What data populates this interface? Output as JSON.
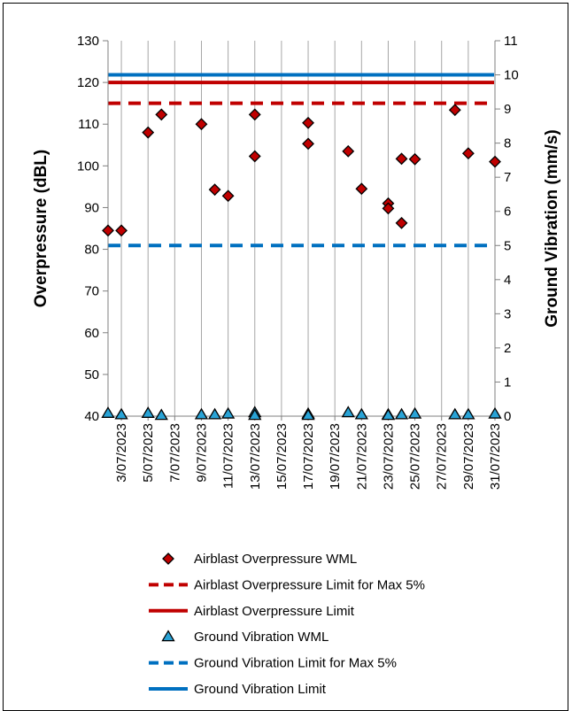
{
  "chart_data": {
    "type": "scatter",
    "y_left_label": "Overpressure (dBL)",
    "y_right_label": "Ground Vibration (mm/s)",
    "y_left_range": [
      40,
      130
    ],
    "y_right_range": [
      0,
      11
    ],
    "y_left_ticks": [
      "40",
      "50",
      "60",
      "70",
      "80",
      "90",
      "100",
      "110",
      "120",
      "130"
    ],
    "y_right_ticks": [
      "0",
      "1",
      "2",
      "3",
      "4",
      "5",
      "6",
      "7",
      "8",
      "9",
      "10",
      "11"
    ],
    "x_range": [
      "2023-07-02",
      "2023-07-31"
    ],
    "x_tick_labels": [
      "3/07/2023",
      "5/07/2023",
      "7/07/2023",
      "9/07/2023",
      "11/07/2023",
      "13/07/2023",
      "15/07/2023",
      "17/07/2023",
      "19/07/2023",
      "21/07/2023",
      "23/07/2023",
      "25/07/2023",
      "27/07/2023",
      "29/07/2023",
      "31/07/2023"
    ],
    "x_tick_dates": [
      "2023-07-03",
      "2023-07-05",
      "2023-07-07",
      "2023-07-09",
      "2023-07-11",
      "2023-07-13",
      "2023-07-15",
      "2023-07-17",
      "2023-07-19",
      "2023-07-21",
      "2023-07-23",
      "2023-07-25",
      "2023-07-27",
      "2023-07-29",
      "2023-07-31"
    ],
    "grid": "vertical gridlines at date ticks",
    "legend_position": "bottom",
    "series": [
      {
        "name": "Airblast Overpressure WML",
        "axis": "left",
        "marker": "diamond",
        "color": "#c00000",
        "points": [
          [
            "2023-07-02",
            84.5
          ],
          [
            "2023-07-03",
            84.5
          ],
          [
            "2023-07-05",
            108
          ],
          [
            "2023-07-06",
            112.3
          ],
          [
            "2023-07-09",
            110
          ],
          [
            "2023-07-10",
            94.3
          ],
          [
            "2023-07-11",
            92.8
          ],
          [
            "2023-07-13",
            112.3
          ],
          [
            "2023-07-13",
            102.3
          ],
          [
            "2023-07-17",
            110.3
          ],
          [
            "2023-07-17",
            105.3
          ],
          [
            "2023-07-20",
            103.5
          ],
          [
            "2023-07-21",
            94.5
          ],
          [
            "2023-07-23",
            91
          ],
          [
            "2023-07-23",
            89.8
          ],
          [
            "2023-07-24",
            86.3
          ],
          [
            "2023-07-24",
            101.7
          ],
          [
            "2023-07-25",
            101.6
          ],
          [
            "2023-07-28",
            113.4
          ],
          [
            "2023-07-29",
            103
          ],
          [
            "2023-07-31",
            101
          ]
        ]
      },
      {
        "name": "Airblast Overpressure Limit for Max 5%",
        "axis": "left",
        "style": "dashed",
        "color": "#c00000",
        "value": 115
      },
      {
        "name": "Airblast Overpressure Limit",
        "axis": "left",
        "style": "solid",
        "color": "#c00000",
        "value": 120
      },
      {
        "name": "Ground Vibration WML",
        "axis": "right",
        "marker": "triangle",
        "color": "#29a3d6",
        "points": [
          [
            "2023-07-02",
            0.08
          ],
          [
            "2023-07-03",
            0.04
          ],
          [
            "2023-07-05",
            0.08
          ],
          [
            "2023-07-06",
            0.02
          ],
          [
            "2023-07-09",
            0.04
          ],
          [
            "2023-07-10",
            0.04
          ],
          [
            "2023-07-11",
            0.06
          ],
          [
            "2023-07-13",
            0.1
          ],
          [
            "2023-07-13",
            0.02
          ],
          [
            "2023-07-17",
            0.06
          ],
          [
            "2023-07-17",
            0.02
          ],
          [
            "2023-07-20",
            0.1
          ],
          [
            "2023-07-21",
            0.04
          ],
          [
            "2023-07-23",
            0.04
          ],
          [
            "2023-07-23",
            0.02
          ],
          [
            "2023-07-24",
            0.04
          ],
          [
            "2023-07-25",
            0.06
          ],
          [
            "2023-07-28",
            0.04
          ],
          [
            "2023-07-29",
            0.04
          ],
          [
            "2023-07-31",
            0.06
          ]
        ]
      },
      {
        "name": "Ground Vibration Limit for Max 5%",
        "axis": "right",
        "style": "dashed",
        "color": "#0070c0",
        "value": 5
      },
      {
        "name": "Ground Vibration Limit",
        "axis": "right",
        "style": "solid",
        "color": "#0070c0",
        "value": 10
      }
    ]
  }
}
